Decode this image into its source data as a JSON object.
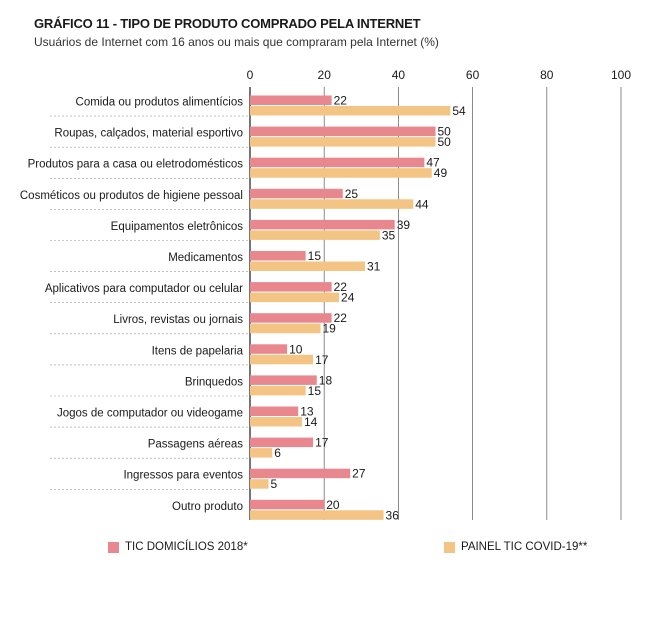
{
  "title": "GRÁFICO 11 - TIPO DE PRODUTO COMPRADO PELA INTERNET",
  "subtitle": "Usuários de Internet com 16 anos ou mais que compraram pela Internet (%)",
  "colors": {
    "series1": "#e8888e",
    "series2": "#f3c483",
    "axis": "#1a1a1a",
    "grid": "#6e6e6e",
    "separator": "#9a9a9a"
  },
  "chart_data": {
    "type": "bar",
    "orientation": "horizontal",
    "categories": [
      "Comida ou produtos alimentícios",
      "Roupas, calçados, material esportivo",
      "Produtos para a casa ou eletrodomésticos",
      "Cosméticos ou produtos de higiene pessoal",
      "Equipamentos eletrônicos",
      "Medicamentos",
      "Aplicativos para computador ou celular",
      "Livros, revistas ou jornais",
      "Itens de papelaria",
      "Brinquedos",
      "Jogos de computador ou videogame",
      "Passagens aéreas",
      "Ingressos para eventos",
      "Outro produto"
    ],
    "series": [
      {
        "name": "TIC DOMICÍLIOS 2018*",
        "values": [
          22,
          50,
          47,
          25,
          39,
          15,
          22,
          22,
          10,
          18,
          13,
          17,
          27,
          20
        ]
      },
      {
        "name": "PAINEL TIC COVID-19**",
        "values": [
          54,
          50,
          49,
          44,
          35,
          31,
          24,
          19,
          17,
          15,
          14,
          6,
          5,
          36
        ]
      }
    ],
    "xlim": [
      0,
      100
    ],
    "xticks": [
      0,
      20,
      40,
      60,
      80,
      100
    ],
    "grid": true,
    "legend": "bottom"
  }
}
